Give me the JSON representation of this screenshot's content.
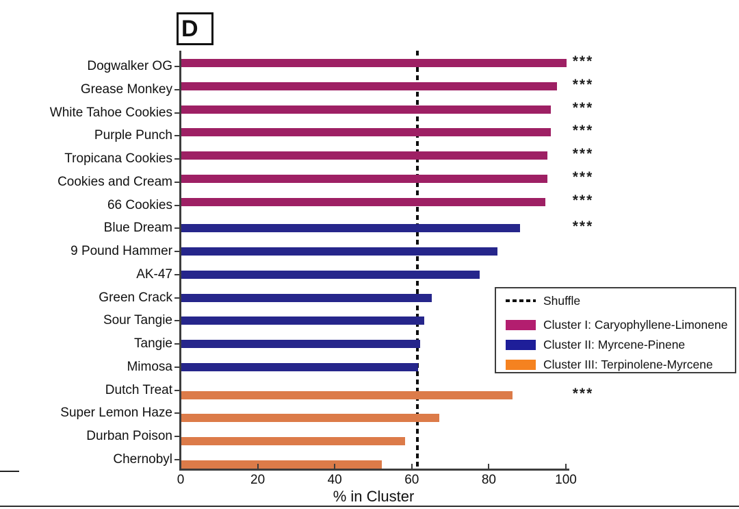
{
  "panel": {
    "label": "D"
  },
  "colors": {
    "cluster_I_bar": "#9E2064",
    "cluster_II_bar": "#26268B",
    "cluster_III_bar": "#DC7B49",
    "cluster_I_legend": "#B31E6F",
    "cluster_II_legend": "#1E1E99",
    "cluster_III_legend": "#F58220",
    "shuffle_line": "#0d0d0d",
    "axis": "#3d3d3d"
  },
  "legend": {
    "items": [
      {
        "type": "dash",
        "label": "Shuffle"
      },
      {
        "type": "swatch",
        "cluster": "I",
        "label": "Cluster I: Caryophyllene-Limonene"
      },
      {
        "type": "swatch",
        "cluster": "II",
        "label": "Cluster II: Myrcene-Pinene"
      },
      {
        "type": "swatch",
        "cluster": "III",
        "label": "Cluster III: Terpinolene-Myrcene"
      }
    ]
  },
  "chart_data": {
    "type": "bar",
    "orientation": "horizontal",
    "xlabel": "% in Cluster",
    "xlim": [
      0,
      100
    ],
    "x_ticks": [
      0,
      20,
      40,
      60,
      80,
      100
    ],
    "shuffle_reference_value": 61.5,
    "significance_marker": "***",
    "legend_position": "center-right",
    "categories": [
      "Dogwalker OG",
      "Grease Monkey",
      "White Tahoe Cookies",
      "Purple Punch",
      "Tropicana Cookies",
      "Cookies and Cream",
      "66 Cookies",
      "Blue Dream",
      "9 Pound Hammer",
      "AK-47",
      "Green Crack",
      "Sour Tangie",
      "Tangie",
      "Mimosa",
      "Dutch Treat",
      "Super Lemon Haze",
      "Durban Poison",
      "Chernobyl"
    ],
    "values": [
      100,
      97.5,
      96,
      96,
      95,
      95,
      94.5,
      88,
      82,
      77.5,
      65,
      63,
      62,
      61.5,
      86,
      67,
      58,
      52
    ],
    "clusters": [
      "I",
      "I",
      "I",
      "I",
      "I",
      "I",
      "I",
      "II",
      "II",
      "II",
      "II",
      "II",
      "II",
      "II",
      "III",
      "III",
      "III",
      "III"
    ],
    "significant": [
      true,
      true,
      true,
      true,
      true,
      true,
      true,
      true,
      false,
      false,
      false,
      false,
      false,
      false,
      true,
      false,
      false,
      false
    ]
  }
}
